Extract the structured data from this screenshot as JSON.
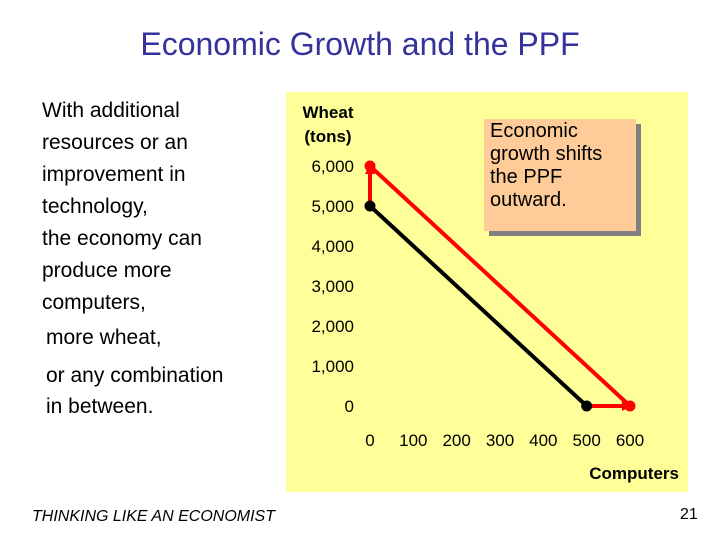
{
  "slide": {
    "title": "Economic Growth and the PPF",
    "text_lines": [
      "With additional",
      "resources or an",
      "improvement in",
      "technology,",
      "the economy can",
      "produce more",
      "computers,"
    ],
    "text2": "more wheat,",
    "text3_lines": [
      "or any combination",
      "in between."
    ],
    "footer": "THINKING LIKE AN ECONOMIST",
    "page_number": "21"
  },
  "colors": {
    "plot_background": "#ffff99",
    "callout_background": "#ffcc99",
    "original_ppf": "#000000",
    "new_ppf": "#ff0000",
    "title": "#333399"
  },
  "chart_data": {
    "type": "line",
    "ylabel_lines": [
      "Wheat",
      "(tons)"
    ],
    "xlabel": "Computers",
    "y_ticks": [
      0,
      1000,
      2000,
      3000,
      4000,
      5000,
      6000
    ],
    "y_tick_labels": [
      "0",
      "1,000",
      "2,000",
      "3,000",
      "4,000",
      "5,000",
      "6,000"
    ],
    "x_ticks": [
      0,
      100,
      200,
      300,
      400,
      500,
      600
    ],
    "x_tick_labels": [
      "0",
      "100",
      "200",
      "300",
      "400",
      "500",
      "600"
    ],
    "xlim": [
      0,
      600
    ],
    "ylim": [
      0,
      6000
    ],
    "grid": false,
    "series": [
      {
        "values": [
          [
            0,
            5000
          ],
          [
            500,
            0
          ]
        ],
        "color": "#000000"
      },
      {
        "values": [
          [
            0,
            6000
          ],
          [
            600,
            0
          ]
        ],
        "color": "#ff0000"
      }
    ],
    "arrows": [
      {
        "from": [
          0,
          5000
        ],
        "to": [
          0,
          6000
        ]
      },
      {
        "from": [
          500,
          0
        ],
        "to": [
          600,
          0
        ]
      }
    ],
    "callout_lines": [
      "Economic",
      "growth shifts",
      "the PPF",
      "outward."
    ]
  }
}
